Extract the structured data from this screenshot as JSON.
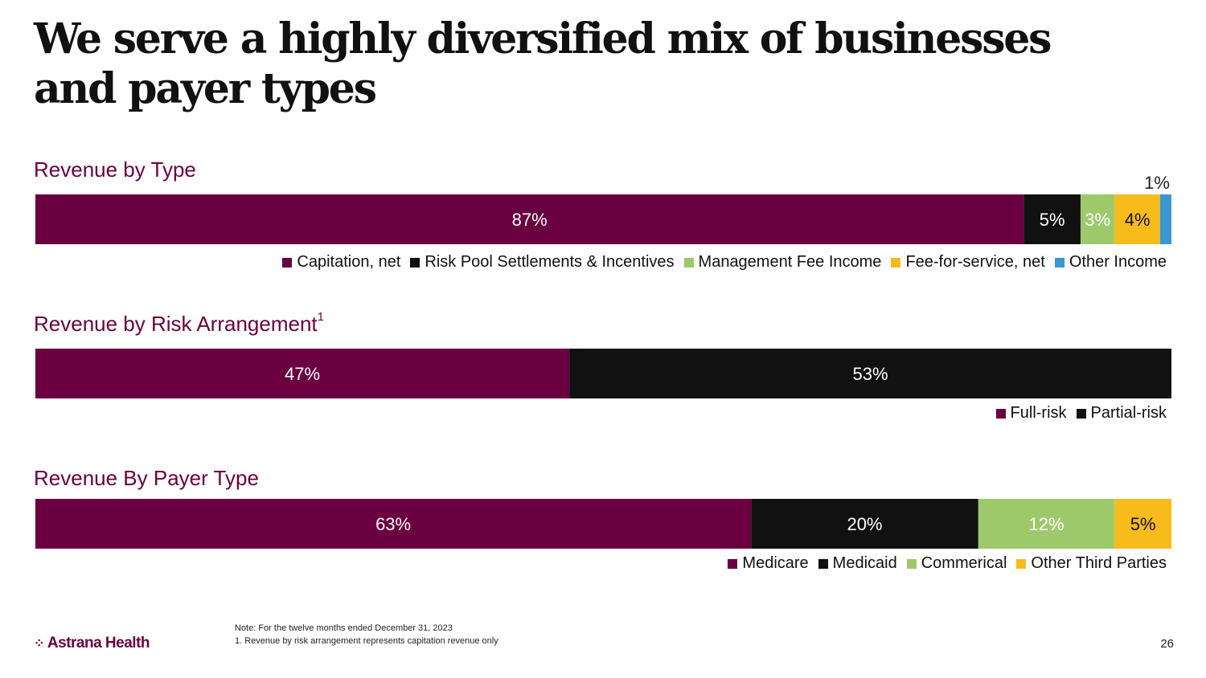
{
  "page": {
    "title": "We serve a highly diversified mix of businesses and payer types",
    "page_number": "26"
  },
  "colors": {
    "plum": "#6b0040",
    "black": "#111111",
    "green": "#9ec96b",
    "gold": "#f7bb1c",
    "blue": "#3a97d2",
    "section_title": "#6b0040"
  },
  "footer": {
    "logo_text": "Astrana Health",
    "logo_icon": "sparkle-dots-icon",
    "note_line1": "Note: For the twelve months ended December 31, 2023",
    "note_line2": "1. Revenue by risk arrangement represents capitation revenue only"
  },
  "chart_data": [
    {
      "type": "bar",
      "orientation": "horizontal-stacked-100",
      "title": "Revenue by Type",
      "superscript": "",
      "series": [
        {
          "name": "Capitation, net",
          "value": 87,
          "label": "87%",
          "color": "#6b0040",
          "label_color": "#ffffff"
        },
        {
          "name": "Risk Pool Settlements & Incentives",
          "value": 5,
          "label": "5%",
          "color": "#111111",
          "label_color": "#ffffff"
        },
        {
          "name": "Management Fee Income",
          "value": 3,
          "label": "3%",
          "color": "#9ec96b",
          "label_color": "#ffffff"
        },
        {
          "name": "Fee-for-service, net",
          "value": 4,
          "label": "4%",
          "color": "#f7bb1c",
          "label_color": "#111111"
        },
        {
          "name": "Other Income",
          "value": 1,
          "label": "1%",
          "color": "#3a97d2",
          "label_color": "#111111",
          "label_outside": true
        }
      ],
      "legend_position": "bottom-right"
    },
    {
      "type": "bar",
      "orientation": "horizontal-stacked-100",
      "title": "Revenue by Risk Arrangement",
      "superscript": "1",
      "series": [
        {
          "name": "Full-risk",
          "value": 47,
          "label": "47%",
          "color": "#6b0040",
          "label_color": "#ffffff"
        },
        {
          "name": "Partial-risk",
          "value": 53,
          "label": "53%",
          "color": "#111111",
          "label_color": "#ffffff"
        }
      ],
      "legend_position": "bottom-right"
    },
    {
      "type": "bar",
      "orientation": "horizontal-stacked-100",
      "title": "Revenue By Payer Type",
      "superscript": "",
      "series": [
        {
          "name": "Medicare",
          "value": 63,
          "label": "63%",
          "color": "#6b0040",
          "label_color": "#ffffff"
        },
        {
          "name": "Medicaid",
          "value": 20,
          "label": "20%",
          "color": "#111111",
          "label_color": "#ffffff"
        },
        {
          "name": "Commerical",
          "value": 12,
          "label": "12%",
          "color": "#9ec96b",
          "label_color": "#ffffff"
        },
        {
          "name": "Other Third Parties",
          "value": 5,
          "label": "5%",
          "color": "#f7bb1c",
          "label_color": "#111111"
        }
      ],
      "legend_position": "bottom-right"
    }
  ]
}
